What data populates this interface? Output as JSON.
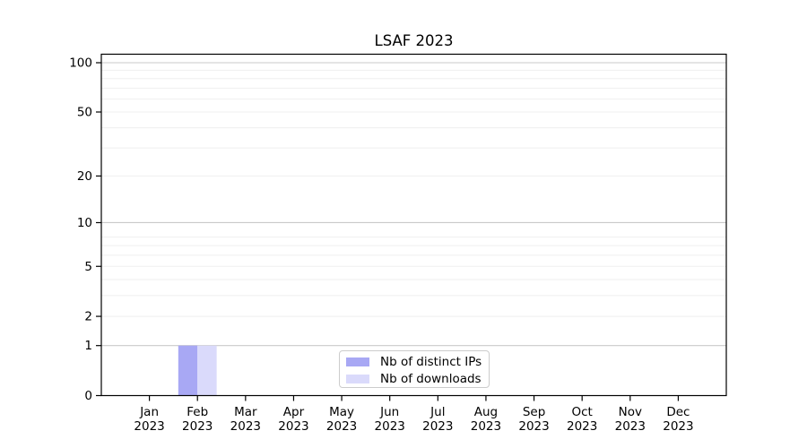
{
  "chart_data": {
    "type": "bar",
    "title": "LSAF 2023",
    "months": [
      "Jan",
      "Feb",
      "Mar",
      "Apr",
      "May",
      "Jun",
      "Jul",
      "Aug",
      "Sep",
      "Oct",
      "Nov",
      "Dec"
    ],
    "year": "2023",
    "series": [
      {
        "name": "Nb of distinct IPs",
        "color": "#a8a8f4",
        "values": [
          0,
          1,
          0,
          0,
          0,
          0,
          0,
          0,
          0,
          0,
          0,
          0
        ]
      },
      {
        "name": "Nb of downloads",
        "color": "#dadafb",
        "values": [
          0,
          1,
          0,
          0,
          0,
          0,
          0,
          0,
          0,
          0,
          0,
          0
        ]
      }
    ],
    "y_axis": {
      "scale": "log1p",
      "ticks": [
        0,
        1,
        2,
        5,
        10,
        20,
        50,
        100
      ],
      "major_gridlines": [
        1,
        10,
        100
      ],
      "minor_gridlines": [
        2,
        3,
        4,
        5,
        6,
        7,
        8,
        20,
        30,
        40,
        50,
        60,
        70,
        80,
        90
      ],
      "top_value": 113
    },
    "legend_position": "lower center",
    "colors": {
      "grid_major": "#c9c9c9",
      "grid_minor": "#efefef",
      "axis": "#000000",
      "text": "#000000",
      "background": "#ffffff"
    }
  }
}
